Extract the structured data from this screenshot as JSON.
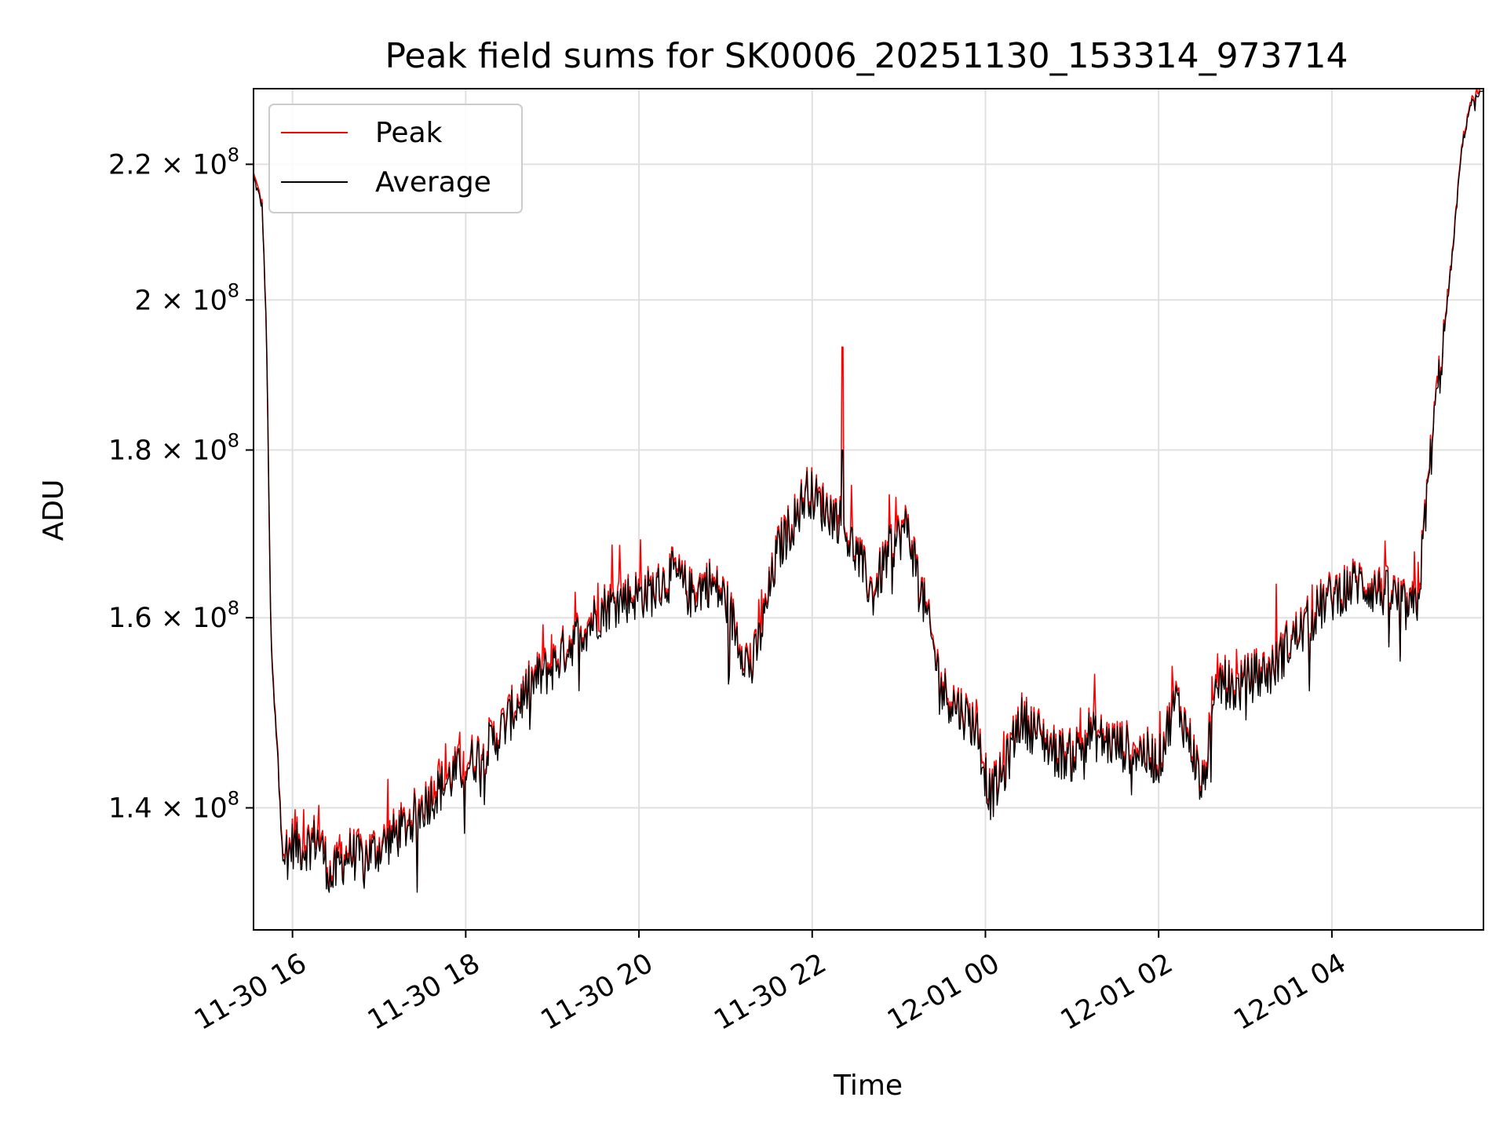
{
  "chart_data": {
    "type": "line",
    "title": "Peak field sums for SK0006_20251130_153314_973714",
    "xlabel": "Time",
    "ylabel": "ADU",
    "yscale": "log",
    "ylim": [
      128500000,
      232000000
    ],
    "x_unit": "hours since 2025-11-30 00:00",
    "xlim": [
      15.55,
      29.75
    ],
    "grid": true,
    "legend_position": "top-left",
    "x_ticks": [
      {
        "value": 16,
        "label": "11-30 16"
      },
      {
        "value": 18,
        "label": "11-30 18"
      },
      {
        "value": 20,
        "label": "11-30 20"
      },
      {
        "value": 22,
        "label": "11-30 22"
      },
      {
        "value": 24,
        "label": "12-01 00"
      },
      {
        "value": 26,
        "label": "12-01 02"
      },
      {
        "value": 28,
        "label": "12-01 04"
      }
    ],
    "y_ticks": [
      {
        "value": 140000000,
        "mantissa": "1.4",
        "exponent": "8"
      },
      {
        "value": 160000000,
        "mantissa": "1.6",
        "exponent": "8"
      },
      {
        "value": 180000000,
        "mantissa": "1.8",
        "exponent": "8"
      },
      {
        "value": 200000000,
        "mantissa": "2",
        "exponent": "8"
      },
      {
        "value": 220000000,
        "mantissa": "2.2",
        "exponent": "8"
      }
    ],
    "series": [
      {
        "name": "Peak",
        "color": "#ff0000",
        "x": [
          15.55,
          15.65,
          15.7,
          15.75,
          15.8,
          15.85,
          15.9,
          15.95,
          16.0,
          16.1,
          16.3,
          16.45,
          16.55,
          16.65,
          16.8,
          17.0,
          17.3,
          17.6,
          17.9,
          18.2,
          18.4,
          18.6,
          18.8,
          19.0,
          19.2,
          19.4,
          19.6,
          19.8,
          20.0,
          20.2,
          20.4,
          20.6,
          20.8,
          21.0,
          21.15,
          21.3,
          21.45,
          21.6,
          21.8,
          21.95,
          22.1,
          22.3,
          22.5,
          22.7,
          22.9,
          23.1,
          23.3,
          23.5,
          23.7,
          23.9,
          24.05,
          24.2,
          24.4,
          24.6,
          24.8,
          25.0,
          25.2,
          25.4,
          25.6,
          25.8,
          26.0,
          26.2,
          26.4,
          26.5,
          26.7,
          26.9,
          27.1,
          27.3,
          27.5,
          27.7,
          27.9,
          28.1,
          28.3,
          28.5,
          28.7,
          28.9,
          29.0,
          29.1,
          29.2,
          29.3,
          29.4,
          29.5,
          29.6,
          29.75
        ],
        "values": [
          218500000,
          214000000,
          195000000,
          158000000,
          149000000,
          142000000,
          136500000,
          136000000,
          137000000,
          136500000,
          137500000,
          133500000,
          135000000,
          136000000,
          135500000,
          136500000,
          138500000,
          141500000,
          144000000,
          146000000,
          148000000,
          151000000,
          153500000,
          155000000,
          157500000,
          159500000,
          161500000,
          162500000,
          163000000,
          163500000,
          165500000,
          163000000,
          164500000,
          162500000,
          158000000,
          154500000,
          160500000,
          168000000,
          172000000,
          175500000,
          173500000,
          172000000,
          168000000,
          163000000,
          168500000,
          171000000,
          161500000,
          152500000,
          150500000,
          148500000,
          141500000,
          143500000,
          149500000,
          148000000,
          146000000,
          145500000,
          148000000,
          147000000,
          146500000,
          146000000,
          145000000,
          151500000,
          146000000,
          142000000,
          153500000,
          152500000,
          154000000,
          154500000,
          157500000,
          159500000,
          162000000,
          163500000,
          164500000,
          163500000,
          163000000,
          161000000,
          162500000,
          175000000,
          186000000,
          196000000,
          208000000,
          223000000,
          230000000,
          232000000
        ]
      },
      {
        "name": "Average",
        "color": "#000000",
        "x": [
          15.55,
          15.65,
          15.7,
          15.75,
          15.8,
          15.85,
          15.9,
          15.95,
          16.0,
          16.1,
          16.3,
          16.45,
          16.55,
          16.65,
          16.8,
          17.0,
          17.3,
          17.6,
          17.9,
          18.2,
          18.4,
          18.6,
          18.8,
          19.0,
          19.2,
          19.4,
          19.6,
          19.8,
          20.0,
          20.2,
          20.4,
          20.6,
          20.8,
          21.0,
          21.15,
          21.3,
          21.45,
          21.6,
          21.8,
          21.95,
          22.1,
          22.3,
          22.5,
          22.7,
          22.9,
          23.1,
          23.3,
          23.5,
          23.7,
          23.9,
          24.05,
          24.2,
          24.4,
          24.6,
          24.8,
          25.0,
          25.2,
          25.4,
          25.6,
          25.8,
          26.0,
          26.2,
          26.4,
          26.5,
          26.7,
          26.9,
          27.1,
          27.3,
          27.5,
          27.7,
          27.9,
          28.1,
          28.3,
          28.5,
          28.7,
          28.9,
          29.0,
          29.1,
          29.2,
          29.3,
          29.4,
          29.5,
          29.6,
          29.75
        ],
        "values": [
          218000000,
          213500000,
          194500000,
          157500000,
          148500000,
          141500000,
          136000000,
          135500000,
          136500000,
          136000000,
          137000000,
          133000000,
          134500000,
          135500000,
          135000000,
          136000000,
          138000000,
          141000000,
          143500000,
          145500000,
          147500000,
          150500000,
          153000000,
          154500000,
          157000000,
          159000000,
          161000000,
          162000000,
          162500000,
          163000000,
          165000000,
          162500000,
          164000000,
          162000000,
          157500000,
          154000000,
          160000000,
          167500000,
          171500000,
          175000000,
          173000000,
          171500000,
          167500000,
          162500000,
          168000000,
          170500000,
          161000000,
          152000000,
          150000000,
          148000000,
          141000000,
          143000000,
          149000000,
          147500000,
          145500000,
          145000000,
          147500000,
          146500000,
          146000000,
          145500000,
          144500000,
          151000000,
          145500000,
          141500000,
          153000000,
          152000000,
          153500000,
          154000000,
          157000000,
          159000000,
          161500000,
          163000000,
          164000000,
          163000000,
          162500000,
          160500000,
          162000000,
          174500000,
          185500000,
          195500000,
          207500000,
          222500000,
          229500000,
          231500000
        ]
      }
    ]
  }
}
